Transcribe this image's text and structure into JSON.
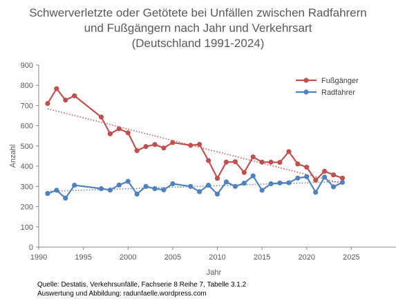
{
  "title_lines": [
    "Schwerverletzte oder Getötete bei Unfällen zwischen Radfahrern",
    "und Fußgängern nach Jahr und Verkehrsart",
    "(Deutschland 1991-2024)"
  ],
  "footnote_lines": [
    "Quelle: Destatis, Verkehrsunfälle, Fachserie 8 Reihe 7, Tabelle 3.1.2",
    "Auswertung und Abbildung: radunfaelle.wordpress.com"
  ],
  "chart_data": {
    "type": "line",
    "title": "Schwerverletzte oder Getötete bei Unfällen zwischen Radfahrern und Fußgängern nach Jahr und Verkehrsart (Deutschland 1991-2024)",
    "xlabel": "Jahr",
    "ylabel": "Anzahl",
    "xlim": [
      1990,
      2030
    ],
    "ylim": [
      0,
      900
    ],
    "xticks": [
      1990,
      1995,
      2000,
      2005,
      2010,
      2015,
      2020,
      2025
    ],
    "yticks": [
      0,
      100,
      200,
      300,
      400,
      500,
      600,
      700,
      800,
      900
    ],
    "grid": false,
    "legend_position": "top-right",
    "trendlines": "linear, dotted, one per series",
    "series": [
      {
        "name": "Fußgänger",
        "color": "#C0504D",
        "x": [
          1991,
          1992,
          1993,
          1994,
          1997,
          1998,
          1999,
          2000,
          2001,
          2002,
          2003,
          2004,
          2005,
          2007,
          2008,
          2009,
          2010,
          2011,
          2012,
          2013,
          2014,
          2015,
          2016,
          2017,
          2018,
          2019,
          2020,
          2021,
          2022,
          2023,
          2024
        ],
        "values": [
          710,
          783,
          727,
          748,
          643,
          560,
          585,
          565,
          477,
          497,
          507,
          490,
          517,
          503,
          508,
          428,
          340,
          420,
          422,
          369,
          446,
          420,
          420,
          419,
          472,
          411,
          395,
          331,
          375,
          357,
          341
        ]
      },
      {
        "name": "Radfahrer",
        "color": "#4F81BD",
        "x": [
          1991,
          1992,
          1993,
          1994,
          1997,
          1998,
          1999,
          2000,
          2001,
          2002,
          2003,
          2004,
          2005,
          2007,
          2008,
          2009,
          2010,
          2011,
          2012,
          2013,
          2014,
          2015,
          2016,
          2017,
          2018,
          2019,
          2020,
          2021,
          2022,
          2023,
          2024
        ],
        "values": [
          265,
          281,
          242,
          306,
          289,
          282,
          307,
          325,
          262,
          300,
          289,
          283,
          313,
          300,
          274,
          306,
          262,
          322,
          300,
          316,
          352,
          281,
          313,
          317,
          318,
          341,
          348,
          271,
          346,
          298,
          320
        ]
      }
    ]
  }
}
